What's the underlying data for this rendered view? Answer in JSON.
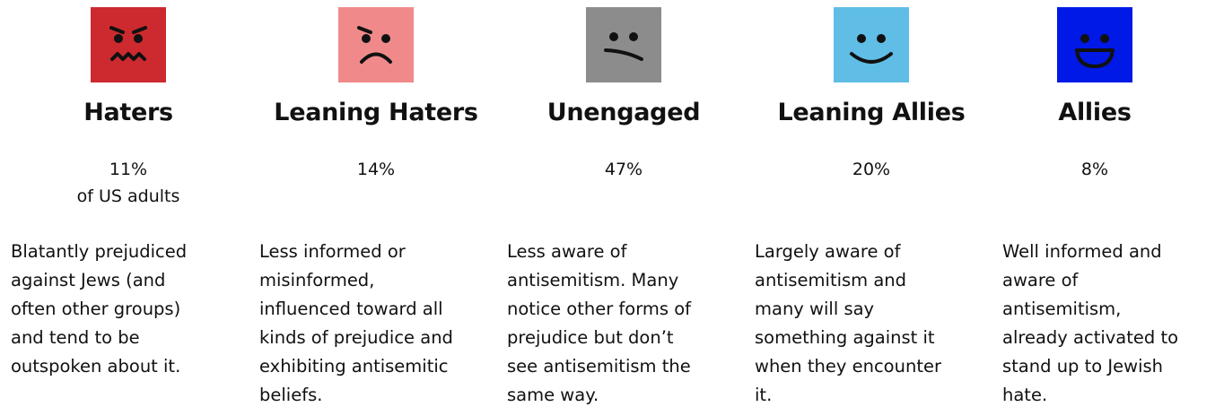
{
  "columns": [
    {
      "title": "Haters",
      "share": "11%",
      "share_note": "of US adults",
      "description": [
        "Blatantly prejudiced",
        "against Jews (and",
        "often other groups)",
        "and tend to be",
        "outspoken about it."
      ]
    },
    {
      "title": "Leaning Haters",
      "share": "14%",
      "description": [
        "Less informed or",
        "misinformed,",
        "influenced toward all",
        "kinds of prejudice and",
        "exhibiting antisemitic",
        "beliefs."
      ]
    },
    {
      "title": "Unengaged",
      "share": "47%",
      "description": [
        "Less aware of",
        "antisemitism. Many",
        "notice other forms of",
        "prejudice but don’t",
        "see antisemitism the",
        "same way."
      ]
    },
    {
      "title": "Leaning Allies",
      "share": "20%",
      "description": [
        "Largely aware of",
        "antisemitism and",
        "many will say",
        "something against it",
        "when they encounter",
        "it."
      ]
    },
    {
      "title": "Allies",
      "share": "8%",
      "description": [
        "Well informed and",
        "aware of",
        "antisemitism,",
        "already activated to",
        "stand up to Jewish",
        "hate."
      ]
    }
  ]
}
